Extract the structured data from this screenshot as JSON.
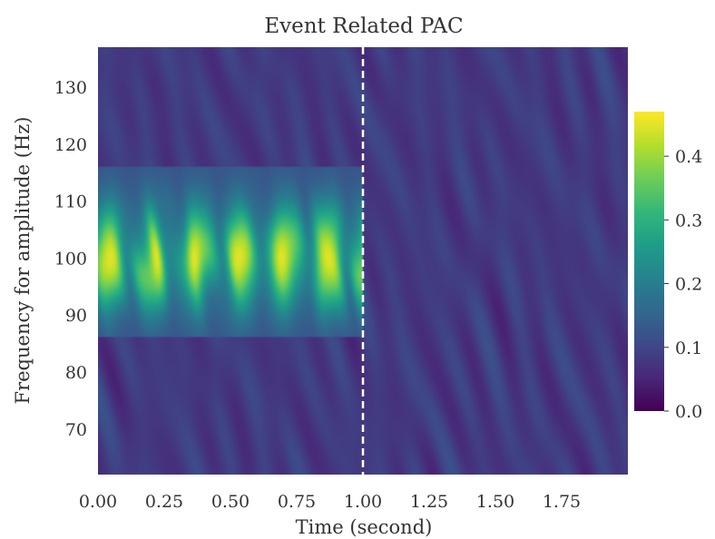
{
  "chart_data": {
    "type": "heatmap",
    "title": "Event Related PAC",
    "xlabel": "Time (second)",
    "ylabel": "Frequency for amplitude (Hz)",
    "xlim": [
      0.0,
      2.0
    ],
    "ylim": [
      62,
      137
    ],
    "x_ticks": [
      "0.00",
      "0.25",
      "0.50",
      "0.75",
      "1.00",
      "1.25",
      "1.50",
      "1.75"
    ],
    "x_tick_values": [
      0.0,
      0.25,
      0.5,
      0.75,
      1.0,
      1.25,
      1.5,
      1.75
    ],
    "y_ticks": [
      "70",
      "80",
      "90",
      "100",
      "110",
      "120",
      "130"
    ],
    "y_tick_values": [
      70,
      80,
      90,
      100,
      110,
      120,
      130
    ],
    "colorbar": {
      "colormap": "viridis",
      "range": [
        0.0,
        0.47
      ],
      "ticks": [
        "0.0",
        "0.1",
        "0.2",
        "0.3",
        "0.4"
      ],
      "tick_values": [
        0.0,
        0.1,
        0.2,
        0.3,
        0.4
      ]
    },
    "event_marker": {
      "x": 1.0,
      "style": "dashed",
      "color": "#ffffff"
    },
    "pac_region": {
      "time_range": [
        0.0,
        1.0
      ],
      "freq_range": [
        86,
        116
      ],
      "peak_freq": 100,
      "peak_value": 0.45,
      "background_value": 0.08
    },
    "grid": false
  }
}
